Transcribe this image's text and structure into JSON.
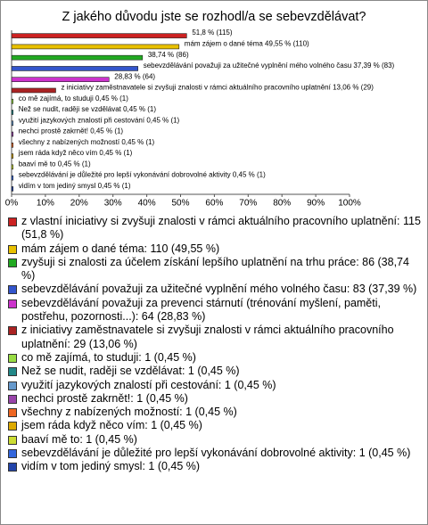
{
  "chart_data": {
    "type": "hbar",
    "title": "Z jakého důvodu jste se rozhodl/a se sebevzdělávat?",
    "categories": [
      "z vlastní iniciativy si zvyšuji znalosti v rámci aktuálního pracovního uplatnění: 115 (51,8 %)",
      "mám zájem o dané téma: 110 (49,55 %)",
      "zvyšuji si znalosti za účelem získání lepšího uplatnění na trhu práce: 86 (38,74 %)",
      "sebevzdělávání považuji za užitečné vyplnění mého volného času: 83 (37,39 %)",
      "sebevzdělávání považuji za prevenci stárnutí (trénování myšlení, paměti, postřehu, pozornosti...): 64 (28,83 %)",
      "z iniciativy zaměstnavatele si zvyšuji znalosti v rámci aktuálního pracovního uplatnění: 29 (13,06 %)",
      "co mě zajímá, to studuji: 1 (0,45 %)",
      "Než se nudit, raději se vzdělávat: 1 (0,45 %)",
      "využití jazykových znalostí při cestování: 1 (0,45 %)",
      "nechci prostě zakrnět!: 1 (0,45 %)",
      "všechny z nabízených možností: 1 (0,45 %)",
      "jsem ráda když něco vím: 1 (0,45 %)",
      "baaví mě to: 1 (0,45 %)",
      "sebevzdělávání je důležité pro lepší vykonávání dobrovolné aktivity: 1 (0,45 %)",
      "vidím v tom jediný smysl: 1 (0,45 %)"
    ],
    "values": [
      51.8,
      49.55,
      38.74,
      37.39,
      28.83,
      13.06,
      0.45,
      0.45,
      0.45,
      0.45,
      0.45,
      0.45,
      0.45,
      0.45,
      0.45
    ],
    "value_labels": [
      "51,8 % (115)",
      "mám zájem o dané téma 49,55 % (110)",
      "38,74 % (86)",
      "sebevzdělávání považuji za užitečné vyplnění mého volného času 37,39 % (83)",
      "28,83 % (64)",
      "z iniciativy zaměstnavatele si zvyšuji znalosti v rámci aktuálního pracovního uplatnění 13,06 % (29)",
      "co mě zajímá, to studuji 0,45 % (1)",
      "Než se nudit, raději se vzdělávat 0,45 % (1)",
      "využití jazykových znalostí při cestování 0,45 % (1)",
      "nechci prostě zakrnět! 0,45 % (1)",
      "všechny z nabízených možností 0,45 % (1)",
      "jsem ráda když něco vím 0,45 % (1)",
      "baaví mě to 0,45 % (1)",
      "sebevzdělávání je důležité pro lepší vykonávání dobrovolné aktivity 0,45 % (1)",
      "vidím v tom jediný smysl 0,45 % (1)"
    ],
    "colors": [
      "#cc2222",
      "#e8c000",
      "#22aa22",
      "#3355cc",
      "#cc33cc",
      "#aa2222",
      "#99dd44",
      "#228888",
      "#6699cc",
      "#9944aa",
      "#ee6622",
      "#ddaa00",
      "#ccdd33",
      "#3366dd",
      "#2244aa"
    ],
    "xlim": [
      0,
      100
    ],
    "xticks": [
      {
        "value": 0,
        "label": "0%"
      },
      {
        "value": 10,
        "label": "10%"
      },
      {
        "value": 20,
        "label": "20%"
      },
      {
        "value": 30,
        "label": "30%"
      },
      {
        "value": 40,
        "label": "40%"
      },
      {
        "value": 50,
        "label": "50%"
      },
      {
        "value": 60,
        "label": "60%"
      },
      {
        "value": 70,
        "label": "70%"
      },
      {
        "value": 80,
        "label": "80%"
      },
      {
        "value": 90,
        "label": "90%"
      },
      {
        "value": 100,
        "label": "100%"
      }
    ],
    "legend": "bottom"
  }
}
